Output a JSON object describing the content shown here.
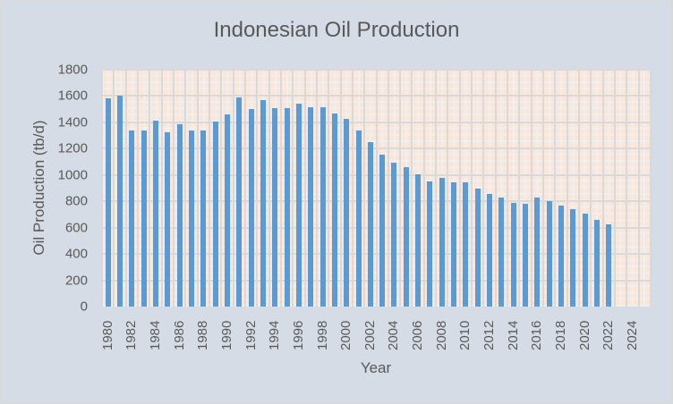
{
  "chart_data": {
    "type": "bar",
    "title": "Indonesian Oil Production",
    "xlabel": "Year",
    "ylabel": "Oil Production (tb/d)",
    "ylim": [
      0,
      1800
    ],
    "yticks": [
      0,
      200,
      400,
      600,
      800,
      1000,
      1200,
      1400,
      1600,
      1800
    ],
    "xtick_labels": [
      "1980",
      "1982",
      "1984",
      "1986",
      "1988",
      "1990",
      "1992",
      "1994",
      "1996",
      "1998",
      "2000",
      "2002",
      "2004",
      "2006",
      "2008",
      "2010",
      "2012",
      "2014",
      "2016",
      "2018",
      "2020",
      "2022",
      "2024"
    ],
    "grid": true,
    "legend": null,
    "bar_color": "#5b9bd5",
    "categories": [
      "1980",
      "1981",
      "1982",
      "1983",
      "1984",
      "1985",
      "1986",
      "1987",
      "1988",
      "1989",
      "1990",
      "1991",
      "1992",
      "1993",
      "1994",
      "1995",
      "1996",
      "1997",
      "1998",
      "1999",
      "2000",
      "2001",
      "2002",
      "2003",
      "2004",
      "2005",
      "2006",
      "2007",
      "2008",
      "2009",
      "2010",
      "2011",
      "2012",
      "2013",
      "2014",
      "2015",
      "2016",
      "2017",
      "2018",
      "2019",
      "2020",
      "2021",
      "2022",
      "2023",
      "2024",
      "2025"
    ],
    "values": [
      1580,
      1605,
      1340,
      1340,
      1415,
      1325,
      1385,
      1340,
      1340,
      1405,
      1460,
      1590,
      1500,
      1570,
      1510,
      1505,
      1545,
      1515,
      1515,
      1470,
      1425,
      1340,
      1250,
      1155,
      1095,
      1060,
      1005,
      950,
      980,
      945,
      945,
      895,
      855,
      830,
      790,
      780,
      830,
      800,
      770,
      740,
      705,
      660,
      625,
      null,
      null,
      null
    ]
  },
  "colors": {
    "background": "#d6dce5",
    "plot_background": "#fbe5d6",
    "text": "#595959",
    "bar": "#5b9bd5"
  }
}
